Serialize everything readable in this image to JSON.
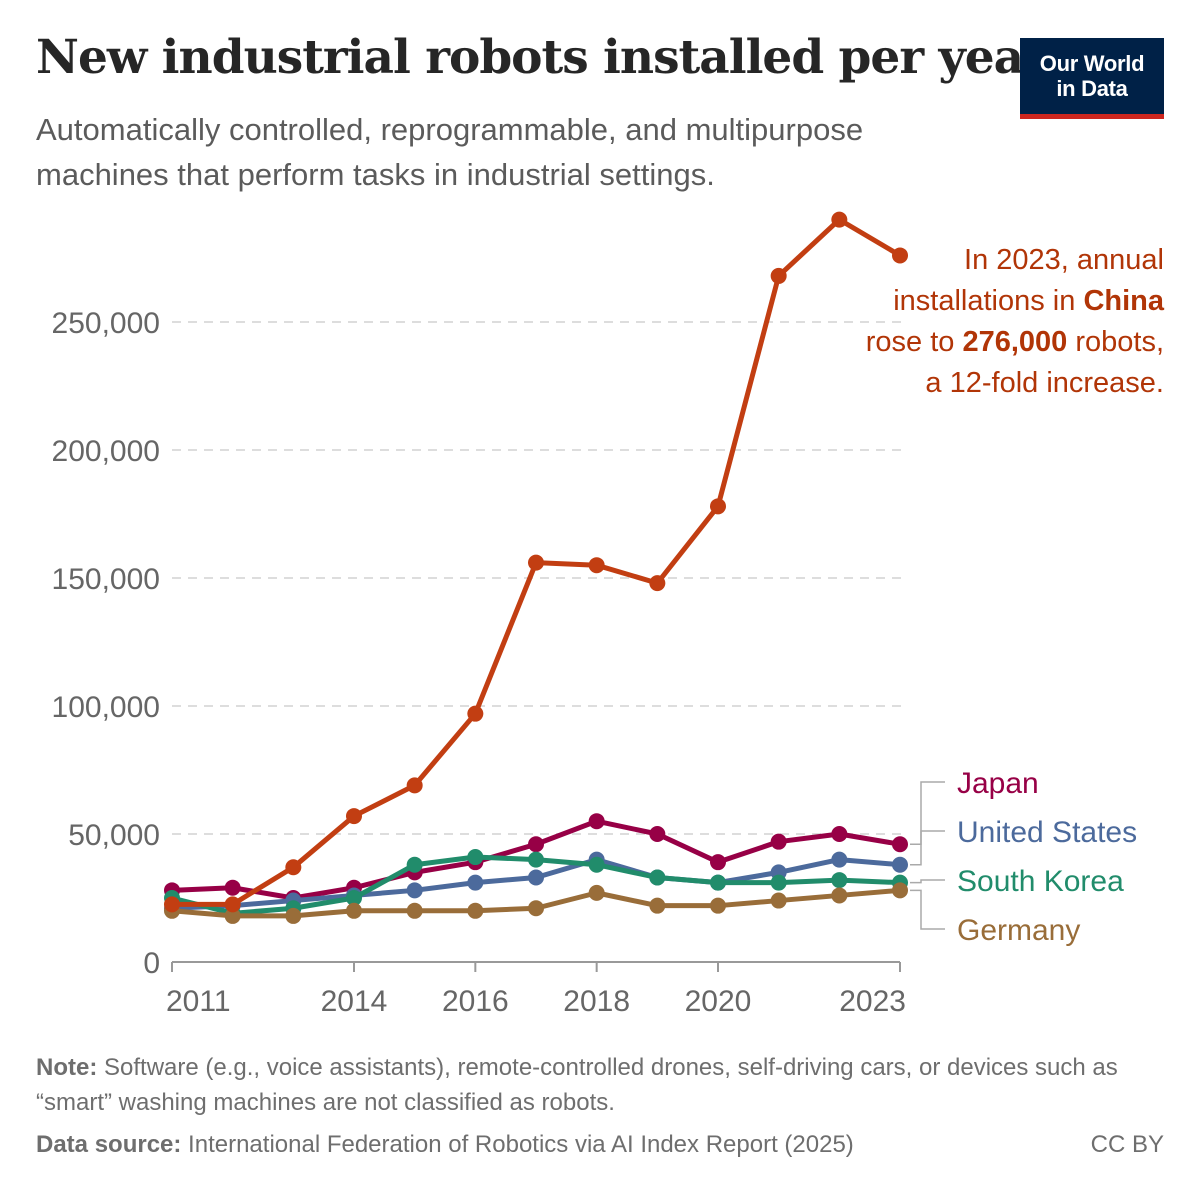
{
  "header": {
    "title": "New industrial robots installed per year",
    "subtitle": "Automatically controlled, reprogrammable, and multipurpose machines that perform tasks in industrial settings.",
    "logo_line1": "Our World",
    "logo_line2": "in Data"
  },
  "annotation": {
    "line1": "In 2023, annual",
    "line2_prefix": "installations in ",
    "line2_bold": "China",
    "line3_prefix": "rose to ",
    "line3_bold": "276,000",
    "line3_suffix": " robots,",
    "line4": "a 12-fold increase."
  },
  "footer": {
    "note_label": "Note:",
    "note_text": " Software (e.g., voice assistants), remote-controlled drones, self-driving cars, or devices such as “smart” washing machines are not classified as robots.",
    "source_label": "Data source:",
    "source_text": " International Federation of Robotics via AI Index Report (2025)",
    "license": "CC BY"
  },
  "colors": {
    "China": "#c23e12",
    "Japan": "#970046",
    "United States": "#4c6a9c",
    "South Korea": "#218c6b",
    "Germany": "#996d39",
    "grid": "#dddddd",
    "axis": "#999999",
    "tick_text": "#666666"
  },
  "chart_data": {
    "type": "line",
    "x": [
      2011,
      2012,
      2013,
      2014,
      2015,
      2016,
      2017,
      2018,
      2019,
      2020,
      2021,
      2022,
      2023
    ],
    "xticks": [
      "2011",
      "2014",
      "2016",
      "2018",
      "2020",
      "2023"
    ],
    "yticks": [
      "0",
      "50,000",
      "100,000",
      "150,000",
      "200,000",
      "250,000"
    ],
    "ylim": [
      0,
      290000
    ],
    "grid": "horizontal dashed",
    "legend": "right-end labels",
    "series": [
      {
        "name": "Japan",
        "values": [
          28000,
          29000,
          25000,
          29000,
          35000,
          39000,
          46000,
          55000,
          50000,
          39000,
          47000,
          50000,
          46000
        ]
      },
      {
        "name": "United States",
        "values": [
          21000,
          22000,
          24000,
          26000,
          28000,
          31000,
          33000,
          40000,
          33000,
          31000,
          35000,
          40000,
          38000
        ]
      },
      {
        "name": "South Korea",
        "values": [
          25000,
          19000,
          21000,
          25000,
          38000,
          41000,
          40000,
          38000,
          33000,
          31000,
          31000,
          32000,
          31000
        ]
      },
      {
        "name": "Germany",
        "values": [
          20000,
          18000,
          18000,
          20000,
          20000,
          20000,
          21000,
          27000,
          22000,
          22000,
          24000,
          26000,
          28000
        ]
      },
      {
        "name": "China",
        "values": [
          22500,
          22500,
          37000,
          57000,
          69000,
          97000,
          156000,
          155000,
          148000,
          178000,
          268000,
          290000,
          276000
        ]
      }
    ]
  }
}
